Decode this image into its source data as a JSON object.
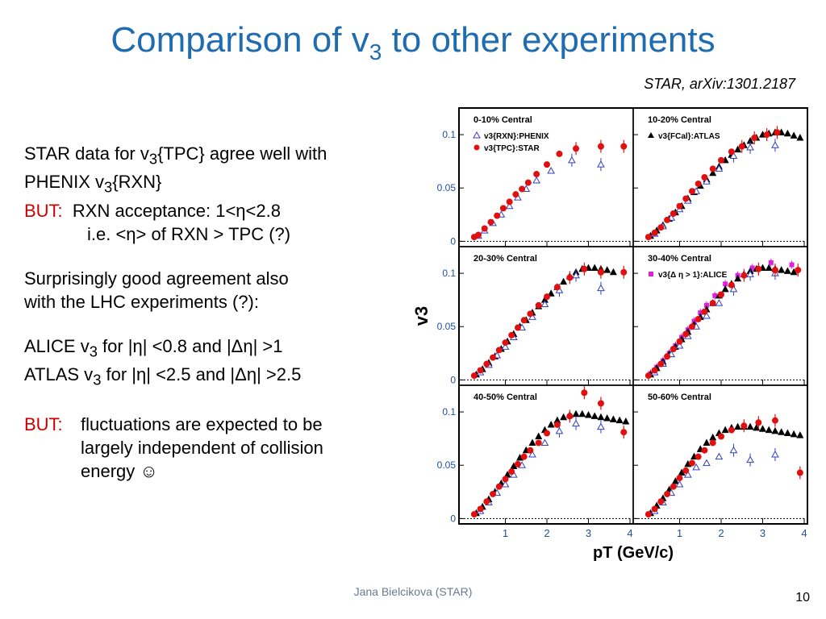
{
  "slide": {
    "title_main": "Comparison of v",
    "title_sub": "3",
    "title_tail": " to other experiments",
    "citation": "STAR, arXiv:1301.2187",
    "footer": "Jana Bielcikova (STAR)",
    "page_number": "10"
  },
  "text": {
    "p1_a": "STAR data for v",
    "p1_sub": "3",
    "p1_b": "{TPC} agree well with",
    "p1_c": "PHENIX v",
    "p1_sub2": "3",
    "p1_d": "{RXN}",
    "but1_label": "BUT:",
    "but1_line1": "  RXN acceptance: 1<η<2.8",
    "but1_line2": "i.e. <η> of RXN > TPC (?)",
    "p2_line1": "Surprisingly good agreement also",
    "p2_line2": "with the LHC experiments (?):",
    "alice_a": "ALICE v",
    "alice_sub": "3",
    "alice_b": " for |η| <0.8 and |Δη| >1",
    "atlas_a": "ATLAS v",
    "atlas_sub": "3",
    "atlas_b": " for |η| <2.5 and |Δη| >2.5",
    "but2_label": "BUT:",
    "but2_line1": "fluctuations are expected to be",
    "but2_line2": "largely independent of collision",
    "but2_line3": "energy ☺"
  },
  "colors": {
    "title": "#1f6cb0",
    "but": "#cc0000",
    "axis_ticks": "#1f4fa0",
    "star": "#e01010",
    "phenix": "#3040c0",
    "atlas": "#000000",
    "alice": "#e020e0"
  },
  "chart_data": {
    "type": "scatter",
    "xlabel": "pT (GeV/c)",
    "ylabel": "v3",
    "xlim": [
      0,
      4
    ],
    "ylim": [
      -0.005,
      0.125
    ],
    "x_ticks": [
      "1",
      "2",
      "3",
      "4"
    ],
    "y_ticks": [
      "0",
      "0.05",
      "0.1"
    ],
    "legend_labels": {
      "phenix": "v3{RXN}:PHENIX",
      "star": "v3{TPC}:STAR",
      "atlas": "v3{FCal}:ATLAS",
      "alice": "v3{Δ η > 1}:ALICE"
    },
    "panels": [
      {
        "label": "0-10% Central",
        "legend": [
          "phenix",
          "star"
        ],
        "star": {
          "x": [
            0.25,
            0.35,
            0.5,
            0.65,
            0.8,
            0.95,
            1.1,
            1.25,
            1.4,
            1.55,
            1.75,
            2.0,
            2.3,
            2.7,
            3.3,
            3.85
          ],
          "y": [
            0.004,
            0.006,
            0.012,
            0.018,
            0.024,
            0.031,
            0.037,
            0.044,
            0.049,
            0.055,
            0.063,
            0.072,
            0.082,
            0.087,
            0.089,
            0.089
          ]
        },
        "phenix": {
          "x": [
            0.35,
            0.5,
            0.7,
            0.9,
            1.1,
            1.3,
            1.5,
            1.75,
            2.1,
            2.6,
            3.3
          ],
          "y": [
            0.005,
            0.01,
            0.017,
            0.025,
            0.033,
            0.041,
            0.049,
            0.057,
            0.066,
            0.076,
            0.072
          ]
        },
        "atlas": {
          "x": [],
          "y": []
        },
        "alice": {
          "x": [],
          "y": []
        }
      },
      {
        "label": "10-20% Central",
        "legend": [
          "atlas"
        ],
        "star": {
          "x": [
            0.25,
            0.4,
            0.55,
            0.7,
            0.85,
            1.0,
            1.15,
            1.3,
            1.45,
            1.6,
            1.8,
            2.0,
            2.25,
            2.5,
            2.8,
            3.1,
            3.35
          ],
          "y": [
            0.004,
            0.008,
            0.013,
            0.02,
            0.026,
            0.033,
            0.04,
            0.047,
            0.054,
            0.06,
            0.068,
            0.076,
            0.084,
            0.089,
            0.097,
            0.1,
            0.102
          ]
        },
        "phenix": {
          "x": [
            0.4,
            0.6,
            0.8,
            1.0,
            1.2,
            1.4,
            1.65,
            1.95,
            2.3,
            2.7,
            3.3
          ],
          "y": [
            0.007,
            0.014,
            0.022,
            0.03,
            0.038,
            0.047,
            0.056,
            0.068,
            0.08,
            0.088,
            0.09
          ]
        },
        "atlas": {
          "x": [
            0.3,
            0.45,
            0.6,
            0.75,
            0.9,
            1.05,
            1.2,
            1.35,
            1.5,
            1.65,
            1.8,
            1.95,
            2.1,
            2.25,
            2.4,
            2.55,
            2.7,
            2.85,
            3.0,
            3.15,
            3.3,
            3.45,
            3.6,
            3.75,
            3.9
          ],
          "y": [
            0.005,
            0.01,
            0.015,
            0.021,
            0.027,
            0.033,
            0.04,
            0.046,
            0.052,
            0.058,
            0.064,
            0.07,
            0.076,
            0.081,
            0.086,
            0.09,
            0.094,
            0.097,
            0.1,
            0.101,
            0.102,
            0.102,
            0.101,
            0.099,
            0.097
          ]
        },
        "alice": {
          "x": [],
          "y": []
        }
      },
      {
        "label": "20-30% Central",
        "legend": [],
        "star": {
          "x": [
            0.25,
            0.4,
            0.55,
            0.7,
            0.85,
            1.0,
            1.15,
            1.3,
            1.45,
            1.6,
            1.8,
            2.0,
            2.25,
            2.55,
            2.9,
            3.3,
            3.85
          ],
          "y": [
            0.004,
            0.009,
            0.015,
            0.021,
            0.028,
            0.035,
            0.042,
            0.049,
            0.056,
            0.062,
            0.07,
            0.078,
            0.087,
            0.096,
            0.104,
            0.101,
            0.101
          ]
        },
        "phenix": {
          "x": [
            0.4,
            0.6,
            0.8,
            1.0,
            1.2,
            1.4,
            1.65,
            1.95,
            2.3,
            2.7,
            3.3
          ],
          "y": [
            0.007,
            0.014,
            0.023,
            0.031,
            0.04,
            0.049,
            0.059,
            0.071,
            0.084,
            0.098,
            0.086
          ]
        },
        "atlas": {
          "x": [
            0.3,
            0.45,
            0.6,
            0.75,
            0.9,
            1.05,
            1.2,
            1.35,
            1.5,
            1.65,
            1.8,
            1.95,
            2.1,
            2.25,
            2.4,
            2.55,
            2.7,
            2.85,
            3.0,
            3.15,
            3.3,
            3.45,
            3.6
          ],
          "y": [
            0.005,
            0.01,
            0.016,
            0.022,
            0.029,
            0.036,
            0.043,
            0.05,
            0.056,
            0.063,
            0.069,
            0.075,
            0.081,
            0.087,
            0.092,
            0.097,
            0.101,
            0.104,
            0.105,
            0.105,
            0.104,
            0.103,
            0.101
          ]
        },
        "alice": {
          "x": [],
          "y": []
        }
      },
      {
        "label": "30-40% Central",
        "legend": [
          "alice"
        ],
        "star": {
          "x": [
            0.25,
            0.4,
            0.55,
            0.7,
            0.85,
            1.0,
            1.15,
            1.3,
            1.45,
            1.6,
            1.8,
            2.0,
            2.25,
            2.55,
            2.9,
            3.3,
            3.85
          ],
          "y": [
            0.004,
            0.009,
            0.015,
            0.022,
            0.029,
            0.036,
            0.043,
            0.05,
            0.057,
            0.064,
            0.072,
            0.08,
            0.089,
            0.098,
            0.104,
            0.103,
            0.103
          ]
        },
        "phenix": {
          "x": [
            0.4,
            0.6,
            0.8,
            1.0,
            1.2,
            1.4,
            1.65,
            1.95,
            2.3,
            2.7,
            3.3
          ],
          "y": [
            0.007,
            0.015,
            0.024,
            0.032,
            0.041,
            0.05,
            0.06,
            0.072,
            0.085,
            0.099,
            0.1
          ]
        },
        "atlas": {
          "x": [
            0.3,
            0.45,
            0.6,
            0.75,
            0.9,
            1.05,
            1.2,
            1.35,
            1.5,
            1.65,
            1.8,
            1.95,
            2.1,
            2.25,
            2.4,
            2.55,
            2.7,
            2.85,
            3.0,
            3.15,
            3.3,
            3.45,
            3.6,
            3.75
          ],
          "y": [
            0.005,
            0.011,
            0.017,
            0.024,
            0.031,
            0.038,
            0.045,
            0.052,
            0.059,
            0.066,
            0.072,
            0.079,
            0.085,
            0.09,
            0.095,
            0.099,
            0.102,
            0.104,
            0.105,
            0.105,
            0.104,
            0.103,
            0.102,
            0.101
          ]
        },
        "alice": {
          "x": [
            0.3,
            0.45,
            0.6,
            0.75,
            0.9,
            1.05,
            1.2,
            1.35,
            1.5,
            1.65,
            1.85,
            2.1,
            2.4,
            2.75,
            3.2,
            3.7
          ],
          "y": [
            0.006,
            0.012,
            0.018,
            0.025,
            0.032,
            0.04,
            0.047,
            0.055,
            0.063,
            0.07,
            0.079,
            0.09,
            0.098,
            0.105,
            0.11,
            0.108
          ]
        }
      },
      {
        "label": "40-50% Central",
        "legend": [],
        "star": {
          "x": [
            0.25,
            0.4,
            0.55,
            0.7,
            0.85,
            1.0,
            1.15,
            1.3,
            1.45,
            1.6,
            1.8,
            2.0,
            2.25,
            2.55,
            2.9,
            3.3,
            3.85
          ],
          "y": [
            0.004,
            0.009,
            0.016,
            0.023,
            0.03,
            0.037,
            0.044,
            0.051,
            0.058,
            0.064,
            0.071,
            0.08,
            0.088,
            0.096,
            0.118,
            0.108,
            0.081
          ]
        },
        "phenix": {
          "x": [
            0.4,
            0.6,
            0.8,
            1.0,
            1.2,
            1.4,
            1.65,
            1.95,
            2.3,
            2.7,
            3.3
          ],
          "y": [
            0.007,
            0.015,
            0.024,
            0.032,
            0.041,
            0.05,
            0.06,
            0.071,
            0.082,
            0.089,
            0.086
          ]
        },
        "atlas": {
          "x": [
            0.3,
            0.45,
            0.6,
            0.75,
            0.9,
            1.05,
            1.2,
            1.35,
            1.5,
            1.65,
            1.8,
            1.95,
            2.1,
            2.25,
            2.4,
            2.55,
            2.7,
            2.85,
            3.0,
            3.15,
            3.3,
            3.45,
            3.6,
            3.75,
            3.9
          ],
          "y": [
            0.005,
            0.011,
            0.018,
            0.025,
            0.033,
            0.041,
            0.049,
            0.057,
            0.064,
            0.071,
            0.077,
            0.083,
            0.088,
            0.092,
            0.095,
            0.097,
            0.098,
            0.098,
            0.097,
            0.096,
            0.095,
            0.094,
            0.093,
            0.092,
            0.091
          ]
        },
        "alice": {
          "x": [],
          "y": []
        }
      },
      {
        "label": "50-60% Central",
        "legend": [],
        "star": {
          "x": [
            0.25,
            0.4,
            0.55,
            0.7,
            0.85,
            1.0,
            1.15,
            1.3,
            1.45,
            1.6,
            1.8,
            2.0,
            2.25,
            2.55,
            2.9,
            3.3,
            3.9
          ],
          "y": [
            0.004,
            0.009,
            0.016,
            0.023,
            0.03,
            0.038,
            0.045,
            0.052,
            0.058,
            0.064,
            0.071,
            0.077,
            0.083,
            0.087,
            0.09,
            0.092,
            0.043
          ]
        },
        "phenix": {
          "x": [
            0.4,
            0.6,
            0.8,
            1.0,
            1.2,
            1.4,
            1.65,
            1.95,
            2.3,
            2.7,
            3.3
          ],
          "y": [
            0.007,
            0.015,
            0.024,
            0.032,
            0.041,
            0.048,
            0.052,
            0.058,
            0.064,
            0.055,
            0.06
          ]
        },
        "atlas": {
          "x": [
            0.3,
            0.45,
            0.6,
            0.75,
            0.9,
            1.05,
            1.2,
            1.35,
            1.5,
            1.65,
            1.8,
            1.95,
            2.1,
            2.25,
            2.4,
            2.55,
            2.7,
            2.85,
            3.0,
            3.15,
            3.3,
            3.45,
            3.6,
            3.75,
            3.9
          ],
          "y": [
            0.005,
            0.012,
            0.019,
            0.027,
            0.035,
            0.043,
            0.051,
            0.058,
            0.065,
            0.071,
            0.076,
            0.08,
            0.083,
            0.085,
            0.086,
            0.086,
            0.086,
            0.085,
            0.084,
            0.083,
            0.082,
            0.081,
            0.08,
            0.079,
            0.078
          ]
        },
        "alice": {
          "x": [],
          "y": []
        }
      }
    ]
  }
}
